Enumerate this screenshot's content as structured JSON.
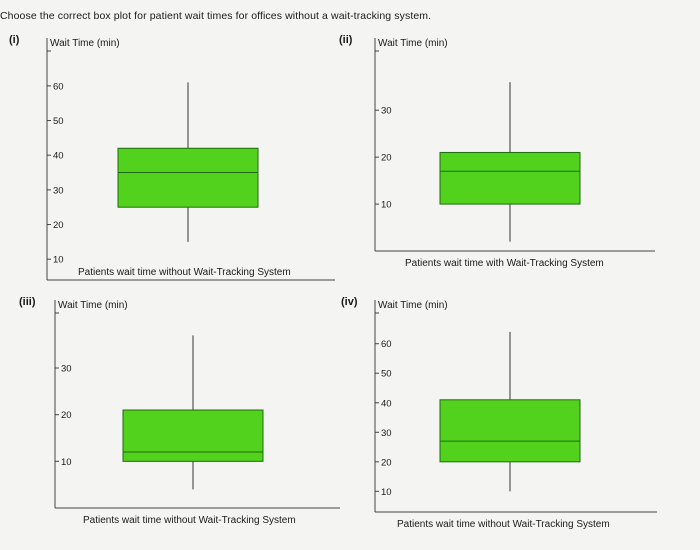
{
  "question": "Choose the correct box plot for patient wait times for offices without a wait-tracking system.",
  "colors": {
    "box_fill": "#52d21c",
    "box_stroke": "#1f6b10",
    "axis": "#444444"
  },
  "chart_data": [
    {
      "label": "(i)",
      "type": "boxplot",
      "ylabel": "Wait Time (min)",
      "xlabel": "Patients wait time without Wait-Tracking System",
      "ticks": [
        10,
        20,
        30,
        40,
        50,
        60
      ],
      "ylim": [
        4,
        64
      ],
      "box": {
        "min": 15,
        "q1": 25,
        "median": 35,
        "q3": 42,
        "max": 61
      }
    },
    {
      "label": "(ii)",
      "type": "boxplot",
      "ylabel": "Wait Time (min)",
      "xlabel": "Patients wait time with Wait-Tracking System",
      "ticks": [
        10,
        20,
        30
      ],
      "ylim": [
        0,
        39
      ],
      "box": {
        "min": 2,
        "q1": 10,
        "median": 17,
        "q3": 21,
        "max": 36
      }
    },
    {
      "label": "(iii)",
      "type": "boxplot",
      "ylabel": "Wait Time (min)",
      "xlabel": "Patients wait time without Wait-Tracking System",
      "ticks": [
        10,
        20,
        30
      ],
      "ylim": [
        0,
        39
      ],
      "box": {
        "min": 4,
        "q1": 10,
        "median": 12,
        "q3": 21,
        "max": 37
      }
    },
    {
      "label": "(iv)",
      "type": "boxplot",
      "ylabel": "Wait Time (min)",
      "xlabel": "Patients wait time without Wait-Tracking System",
      "ticks": [
        10,
        20,
        30,
        40,
        50,
        60
      ],
      "ylim": [
        3,
        66
      ],
      "box": {
        "min": 10,
        "q1": 20,
        "median": 27,
        "q3": 41,
        "max": 64
      }
    }
  ]
}
